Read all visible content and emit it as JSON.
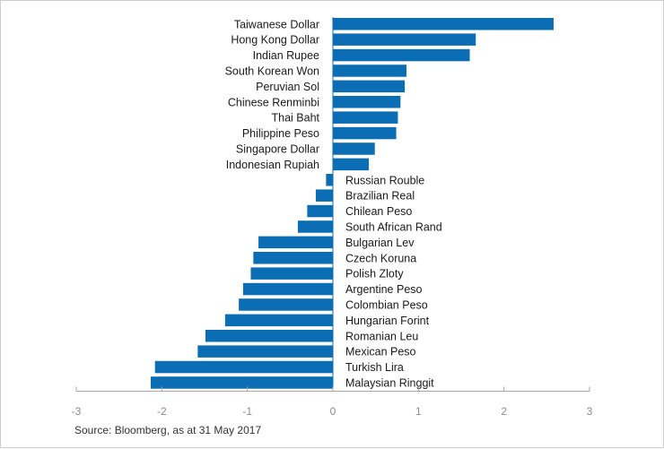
{
  "chart_data": {
    "type": "bar",
    "orientation": "horizontal",
    "categories": [
      "Taiwanese Dollar",
      "Hong Kong Dollar",
      "Indian Rupee",
      "South Korean Won",
      "Peruvian Sol",
      "Chinese Renminbi",
      "Thai Baht",
      "Philippine Peso",
      "Singapore Dollar",
      "Indonesian Rupiah",
      "Russian Rouble",
      "Brazilian Real",
      "Chilean Peso",
      "South African Rand",
      "Bulgarian Lev",
      "Czech Koruna",
      "Polish Zloty",
      "Argentine Peso",
      "Colombian Peso",
      "Hungarian Forint",
      "Romanian Leu",
      "Mexican Peso",
      "Turkish Lira",
      "Malaysian Ringgit"
    ],
    "values": [
      2.58,
      1.67,
      1.6,
      0.86,
      0.84,
      0.79,
      0.76,
      0.74,
      0.49,
      0.42,
      -0.08,
      -0.2,
      -0.3,
      -0.41,
      -0.87,
      -0.93,
      -0.96,
      -1.05,
      -1.1,
      -1.26,
      -1.49,
      -1.58,
      -2.08,
      -2.13
    ],
    "xlim": [
      -3,
      3
    ],
    "xticks": [
      "-3",
      "-2",
      "-1",
      "0",
      "1",
      "2",
      "3"
    ],
    "bar_color": "#0b6db3",
    "grid": false,
    "legend": "none"
  },
  "source_note": "Source: Bloomberg, as at 31 May 2017"
}
